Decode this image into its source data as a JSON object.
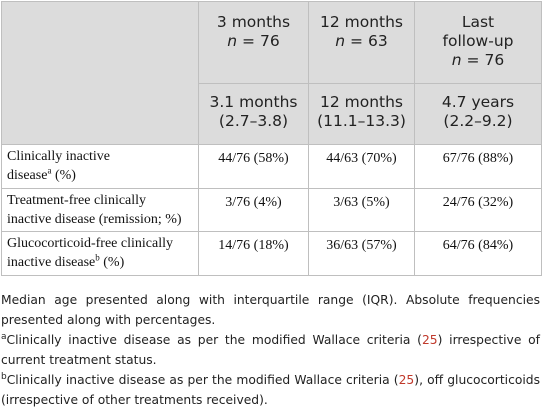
{
  "header": {
    "columns": [
      {
        "title": "3 months",
        "n_prefix": "n",
        "n_value": " = 76",
        "median": "3.1 months",
        "iqr": "(2.7–3.8)"
      },
      {
        "title": "12 months",
        "n_prefix": "n",
        "n_value": " = 63",
        "median": "12 months",
        "iqr": "(11.1–13.3)"
      },
      {
        "title_line1": "Last",
        "title_line2": "follow-up",
        "n_prefix": "n",
        "n_value": " = 76",
        "median": "4.7 years",
        "iqr": "(2.2–9.2)"
      }
    ]
  },
  "rows": [
    {
      "label_a": "Clinically inactive",
      "label_b": "disease",
      "sup": "a",
      "label_c": " (%)",
      "values": [
        "44/76 (58%)",
        "44/63 (70%)",
        "67/76 (88%)"
      ]
    },
    {
      "label_a": "Treatment-free clinically",
      "label_b": "inactive disease (remission; %)",
      "values": [
        "3/76 (4%)",
        "3/63 (5%)",
        "24/76 (32%)"
      ]
    },
    {
      "label_a": "Glucocorticoid-free clinically",
      "label_b": "inactive disease",
      "sup": "b",
      "label_c": " (%)",
      "values": [
        "14/76 (18%)",
        "36/63 (57%)",
        "64/76 (84%)"
      ]
    }
  ],
  "notes": {
    "main": "Median age presented along with interquartile range (IQR). Absolute frequencies presented along with percentages.",
    "a_sup": "a",
    "a_pre": "Clinically inactive disease as per the modified Wallace criteria (",
    "a_ref": "25",
    "a_post": ") irrespective of current treatment status.",
    "b_sup": "b",
    "b_pre": "Clinically inactive disease as per the modified Wallace criteria (",
    "b_ref": "25",
    "b_post": "), off glucocorticoids (irrespective of other treatments received)."
  }
}
